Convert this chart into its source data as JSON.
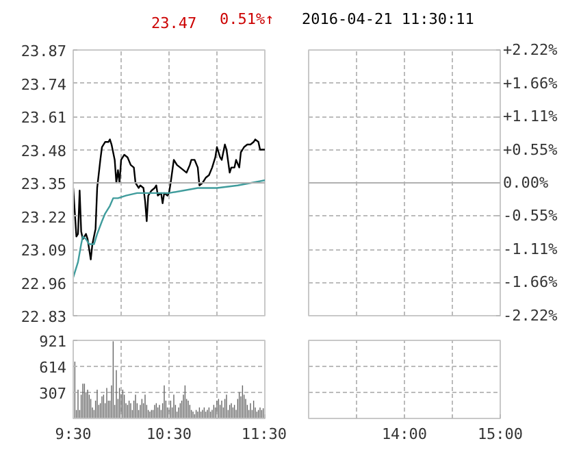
{
  "chart_data": [
    {
      "type": "line",
      "annotations": [
        "23.47",
        "0.51%↑"
      ],
      "series": [
        {
          "color": "#000000",
          "x": [
            9.5,
            9.533,
            9.55,
            9.567,
            9.583,
            9.6,
            9.633,
            9.65,
            9.683,
            9.7,
            9.733,
            9.75,
            9.783,
            9.8,
            9.833,
            9.867,
            9.883,
            9.9,
            9.933,
            9.95,
            9.967,
            9.983,
            10,
            10.033,
            10.067,
            10.1,
            10.133,
            10.15,
            10.183,
            10.2,
            10.233,
            10.25,
            10.267,
            10.283,
            10.317,
            10.35,
            10.367,
            10.383,
            10.417,
            10.433,
            10.45,
            10.483,
            10.5,
            10.517,
            10.55,
            10.583,
            10.617,
            10.65,
            10.683,
            10.717,
            10.733,
            10.767,
            10.8,
            10.817,
            10.85,
            10.883,
            10.917,
            10.95,
            10.983,
            11,
            11.033,
            11.05,
            11.083,
            11.1,
            11.133,
            11.15,
            11.183,
            11.2,
            11.233,
            11.25,
            11.267,
            11.283,
            11.317,
            11.35,
            11.383,
            11.4,
            11.433,
            11.45,
            11.467,
            11.5
          ],
          "values": [
            23.33,
            23.14,
            23.15,
            23.32,
            23.16,
            23.13,
            23.15,
            23.13,
            23.05,
            23.11,
            23.17,
            23.33,
            23.44,
            23.49,
            23.51,
            23.51,
            23.52,
            23.5,
            23.44,
            23.35,
            23.4,
            23.35,
            23.44,
            23.46,
            23.45,
            23.42,
            23.41,
            23.35,
            23.33,
            23.34,
            23.33,
            23.28,
            23.2,
            23.3,
            23.32,
            23.33,
            23.34,
            23.3,
            23.31,
            23.27,
            23.31,
            23.3,
            23.31,
            23.35,
            23.44,
            23.42,
            23.41,
            23.4,
            23.39,
            23.42,
            23.44,
            23.44,
            23.41,
            23.34,
            23.35,
            23.37,
            23.38,
            23.41,
            23.45,
            23.49,
            23.45,
            23.44,
            23.5,
            23.48,
            23.39,
            23.41,
            23.41,
            23.44,
            23.41,
            23.47,
            23.48,
            23.49,
            23.5,
            23.5,
            23.51,
            23.52,
            23.51,
            23.48,
            23.48,
            23.48
          ]
        },
        {
          "color": "#3f9c9c",
          "x": [
            9.5,
            9.55,
            9.583,
            9.6,
            9.633,
            9.667,
            9.717,
            9.75,
            9.8,
            9.833,
            9.883,
            9.917,
            9.967,
            10.05,
            10.167,
            10.383,
            10.5,
            10.8,
            11,
            11.217,
            11.5
          ],
          "values": [
            22.98,
            23.04,
            23.11,
            23.14,
            23.13,
            23.11,
            23.11,
            23.15,
            23.2,
            23.23,
            23.26,
            23.29,
            23.29,
            23.3,
            23.31,
            23.31,
            23.31,
            23.33,
            23.33,
            23.34,
            23.36
          ]
        }
      ],
      "xlim": [
        9.5,
        11.5
      ],
      "ylim": [
        22.83,
        23.87
      ],
      "yticks": [
        22.83,
        22.96,
        23.09,
        23.22,
        23.35,
        23.48,
        23.61,
        23.74,
        23.87
      ],
      "xticks": [
        {
          "value": 9.5,
          "label": null
        },
        {
          "value": 10,
          "label": null
        },
        {
          "value": 10.5,
          "label": null
        },
        {
          "value": 11,
          "label": null
        },
        {
          "value": 11.5,
          "label": null
        }
      ],
      "ref_lines": [
        {
          "axis": "y",
          "value": 23.35,
          "color": "#b0b0b0"
        }
      ],
      "grid": true,
      "tick_labels": "y"
    },
    {
      "type": "line",
      "annotations": [
        "2016-04-21 11:30:11"
      ],
      "xlim": [
        13,
        15
      ],
      "ylim": [
        22.83,
        23.87
      ],
      "y2lim": [
        -2.22,
        2.22
      ],
      "y2ticks": [
        {
          "value": -2.22,
          "label": "-2.22%"
        },
        {
          "value": -1.66,
          "label": "-1.66%"
        },
        {
          "value": -1.11,
          "label": "-1.11%"
        },
        {
          "value": -0.55,
          "label": "-0.55%"
        },
        {
          "value": 0,
          "label": "0.00%"
        },
        {
          "value": 0.55,
          "label": "+0.55%"
        },
        {
          "value": 1.11,
          "label": "+1.11%"
        },
        {
          "value": 1.66,
          "label": "+1.66%"
        },
        {
          "value": 2.22,
          "label": "+2.22%"
        }
      ],
      "xticks": [
        {
          "value": 13.5,
          "label": null
        },
        {
          "value": 14,
          "label": null
        },
        {
          "value": 14.5,
          "label": null
        },
        {
          "value": 15,
          "label": null
        }
      ],
      "ref_lines": [
        {
          "axis": "y",
          "value": 23.35,
          "color": "#b0b0b0"
        }
      ],
      "grid": true,
      "tick_labels": "y"
    },
    {
      "type": "bar",
      "color": "#666666",
      "x": [
        9.517,
        9.533,
        9.55,
        9.567,
        9.583,
        9.6,
        9.617,
        9.633,
        9.65,
        9.667,
        9.683,
        9.7,
        9.717,
        9.733,
        9.75,
        9.767,
        9.783,
        9.8,
        9.817,
        9.833,
        9.85,
        9.867,
        9.883,
        9.9,
        9.917,
        9.933,
        9.95,
        9.967,
        9.983,
        10,
        10.017,
        10.033,
        10.05,
        10.067,
        10.083,
        10.1,
        10.117,
        10.133,
        10.15,
        10.167,
        10.183,
        10.2,
        10.217,
        10.233,
        10.25,
        10.267,
        10.283,
        10.3,
        10.317,
        10.333,
        10.35,
        10.367,
        10.383,
        10.4,
        10.417,
        10.433,
        10.45,
        10.467,
        10.483,
        10.5,
        10.517,
        10.533,
        10.55,
        10.567,
        10.583,
        10.6,
        10.617,
        10.633,
        10.65,
        10.667,
        10.683,
        10.7,
        10.717,
        10.733,
        10.75,
        10.767,
        10.783,
        10.8,
        10.817,
        10.833,
        10.85,
        10.867,
        10.883,
        10.9,
        10.917,
        10.933,
        10.95,
        10.967,
        10.983,
        11,
        11.017,
        11.033,
        11.05,
        11.067,
        11.083,
        11.1,
        11.117,
        11.133,
        11.15,
        11.167,
        11.183,
        11.2,
        11.217,
        11.233,
        11.25,
        11.267,
        11.283,
        11.3,
        11.317,
        11.333,
        11.35,
        11.367,
        11.383,
        11.4,
        11.417,
        11.433,
        11.45,
        11.467,
        11.483
      ],
      "values": [
        670,
        100,
        340,
        100,
        280,
        410,
        410,
        310,
        340,
        280,
        230,
        130,
        100,
        210,
        340,
        160,
        180,
        260,
        280,
        180,
        360,
        210,
        210,
        390,
        910,
        160,
        570,
        230,
        360,
        280,
        340,
        280,
        180,
        160,
        210,
        180,
        100,
        210,
        280,
        180,
        100,
        160,
        230,
        180,
        280,
        160,
        100,
        80,
        100,
        100,
        160,
        180,
        130,
        160,
        100,
        180,
        390,
        210,
        130,
        100,
        210,
        130,
        280,
        160,
        80,
        130,
        180,
        210,
        280,
        390,
        230,
        210,
        160,
        100,
        80,
        50,
        100,
        80,
        130,
        80,
        100,
        130,
        80,
        100,
        130,
        80,
        100,
        160,
        130,
        210,
        230,
        160,
        210,
        130,
        230,
        280,
        100,
        160,
        180,
        130,
        160,
        100,
        230,
        310,
        260,
        390,
        280,
        230,
        160,
        100,
        180,
        100,
        210,
        130,
        80,
        100,
        130,
        100,
        120
      ],
      "xlim": [
        9.5,
        11.5
      ],
      "ylim": [
        0,
        921
      ],
      "yticks": [
        307,
        614,
        921
      ],
      "xticks": [
        {
          "value": 9.5,
          "label": "9:30"
        },
        {
          "value": 10,
          "label": null
        },
        {
          "value": 10.5,
          "label": "10:30"
        },
        {
          "value": 11,
          "label": null
        },
        {
          "value": 11.5,
          "label": "11:30"
        }
      ],
      "grid": true
    },
    {
      "type": "bar",
      "xlim": [
        13,
        15
      ],
      "ylim": [
        0,
        921
      ],
      "yticks": [
        307,
        614,
        921
      ],
      "xticks": [
        {
          "value": 13.5,
          "label": null
        },
        {
          "value": 14,
          "label": "14:00"
        },
        {
          "value": 14.5,
          "label": null
        },
        {
          "value": 15,
          "label": "15:00"
        }
      ],
      "grid": true,
      "tick_labels": "x"
    }
  ]
}
